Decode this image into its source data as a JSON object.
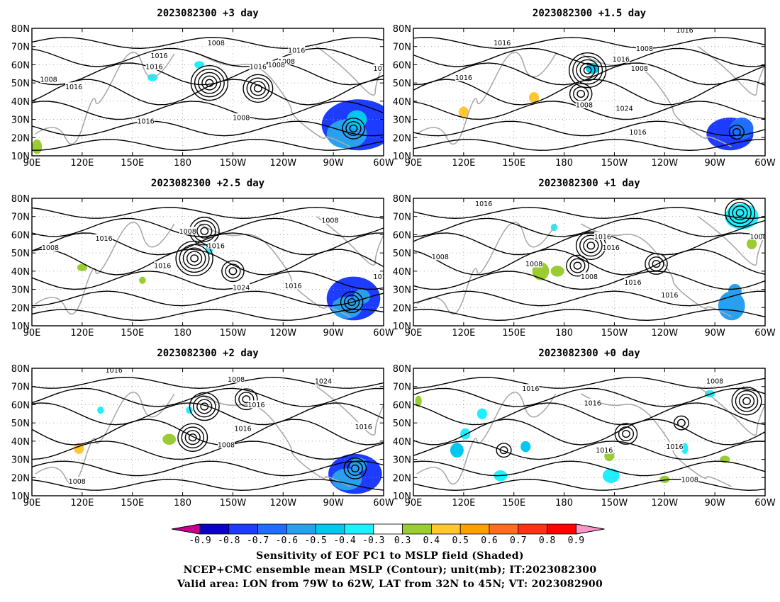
{
  "panels": [
    {
      "title": "2023082300 +3 day",
      "contour_labels": [
        "1016",
        "1008",
        "1016",
        "1008",
        "1016",
        "1016",
        "1008",
        "1008",
        "1016",
        "1016",
        "1008",
        "1016"
      ]
    },
    {
      "title": "2023082300 +1.5 day",
      "contour_labels": [
        "1016",
        "1008",
        "1016",
        "1016",
        "1008",
        "1008",
        "1024",
        "1016",
        "1016"
      ]
    },
    {
      "title": "2023082300 +2.5 day",
      "contour_labels": [
        "1008",
        "1016",
        "1008",
        "1016",
        "1016",
        "1024",
        "1016",
        "1008",
        "1016"
      ]
    },
    {
      "title": "2023082300 +1 day",
      "contour_labels": [
        "1016",
        "1016",
        "1016",
        "1008",
        "1008",
        "1008",
        "1008",
        "1016",
        "1016"
      ]
    },
    {
      "title": "2023082300 +2 day",
      "contour_labels": [
        "1016",
        "1008",
        "1016",
        "1016",
        "1008",
        "1024",
        "1016",
        "1008"
      ]
    },
    {
      "title": "2023082300 +0 day",
      "contour_labels": [
        "1016",
        "1016",
        "1008",
        "1016",
        "1016",
        "1008"
      ]
    }
  ],
  "axes": {
    "lat_ticks": [
      "80N",
      "70N",
      "60N",
      "50N",
      "40N",
      "30N",
      "20N",
      "10N"
    ],
    "lon_ticks": [
      "90E",
      "120E",
      "150E",
      "180",
      "150W",
      "120W",
      "90W",
      "60W"
    ],
    "lat_range": [
      10,
      80
    ],
    "lon_range": [
      90,
      300
    ]
  },
  "colorbar": {
    "labels": [
      "-0.9",
      "-0.8",
      "-0.7",
      "-0.6",
      "-0.5",
      "-0.4",
      "-0.3",
      "0.3",
      "0.4",
      "0.5",
      "0.6",
      "0.7",
      "0.8",
      "0.9"
    ],
    "colors": [
      "#0a00c8",
      "#1e3cff",
      "#1e6eff",
      "#28a0f0",
      "#00c8f0",
      "#1ef0ff",
      "#ffffff",
      "#9acd32",
      "#ffc832",
      "#ffa000",
      "#ff6e1e",
      "#ff3214",
      "#ff0000"
    ],
    "low_extend_color": "#c8008c",
    "high_extend_color": "#ff96c8"
  },
  "captions": {
    "line1": "Sensitivity of EOF PC1 to MSLP field (Shaded)",
    "line2": "NCEP+CMC ensemble mean MSLP (Contour); unit(mb); IT:2023082300",
    "line3": "Valid area: LON from 79W to 62W, LAT from 32N to 45N; VT: 2023082900"
  },
  "colors": {
    "contour": "#000000",
    "coastline": "#aaaaaa",
    "grid": "#999999"
  }
}
